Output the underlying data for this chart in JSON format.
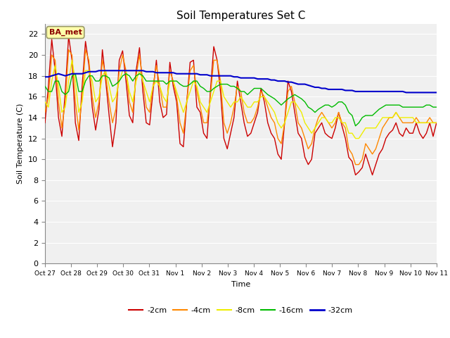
{
  "title": "Soil Temperatures Set C",
  "xlabel": "Time",
  "ylabel": "Soil Temperature (C)",
  "ylim": [
    0,
    23
  ],
  "yticks": [
    0,
    2,
    4,
    6,
    8,
    10,
    12,
    14,
    16,
    18,
    20,
    22
  ],
  "annotation": "BA_met",
  "fig_bg_color": "#ffffff",
  "plot_bg_color": "#f0f0f0",
  "series": {
    "-2cm": {
      "color": "#cc0000",
      "lw": 1.0
    },
    "-4cm": {
      "color": "#ff8800",
      "lw": 1.0
    },
    "-8cm": {
      "color": "#eeee00",
      "lw": 1.0
    },
    "-16cm": {
      "color": "#00bb00",
      "lw": 1.0
    },
    "-32cm": {
      "color": "#0000cc",
      "lw": 1.5
    }
  },
  "x_tick_labels": [
    "Oct 27",
    "Oct 28",
    "Oct 29",
    "Oct 30",
    "Oct 31",
    "Nov 1",
    "Nov 2",
    "Nov 3",
    "Nov 4",
    "Nov 5",
    "Nov 6",
    "Nov 7",
    "Nov 8",
    "Nov 9",
    "Nov 10",
    "Nov 11"
  ],
  "x_tick_positions": [
    0,
    1,
    2,
    3,
    4,
    5,
    6,
    7,
    8,
    9,
    10,
    11,
    12,
    13,
    14,
    15
  ],
  "data_2cm": [
    13.5,
    17.0,
    21.5,
    18.5,
    14.0,
    12.2,
    16.5,
    21.8,
    19.5,
    13.5,
    11.8,
    17.0,
    21.3,
    19.0,
    15.0,
    12.8,
    14.8,
    20.5,
    17.5,
    14.2,
    11.2,
    13.5,
    19.5,
    20.4,
    17.5,
    14.2,
    13.5,
    18.5,
    20.7,
    16.5,
    13.5,
    13.3,
    16.5,
    19.5,
    15.5,
    14.0,
    14.3,
    19.3,
    17.0,
    15.5,
    11.5,
    11.2,
    15.5,
    19.3,
    19.5,
    15.0,
    14.5,
    12.5,
    12.0,
    16.5,
    20.8,
    19.5,
    16.5,
    12.0,
    11.0,
    12.5,
    14.0,
    17.5,
    15.5,
    13.5,
    12.2,
    12.5,
    13.5,
    14.5,
    16.8,
    15.5,
    13.5,
    12.5,
    12.0,
    10.5,
    10.0,
    13.5,
    17.5,
    16.5,
    14.5,
    12.5,
    12.0,
    10.2,
    9.5,
    10.0,
    12.5,
    13.0,
    13.5,
    12.5,
    12.2,
    12.0,
    13.0,
    14.5,
    13.2,
    12.0,
    10.2,
    9.8,
    8.5,
    8.8,
    9.2,
    10.5,
    9.5,
    8.5,
    9.5,
    10.5,
    11.0,
    12.0,
    12.5,
    12.8,
    13.5,
    12.5,
    12.2,
    13.0,
    12.5,
    12.5,
    13.5,
    12.5,
    12.0,
    12.5,
    13.5,
    12.2,
    13.5
  ],
  "data_4cm": [
    14.5,
    16.0,
    20.0,
    19.5,
    15.5,
    13.0,
    15.5,
    20.5,
    20.0,
    15.5,
    12.8,
    16.0,
    20.5,
    19.5,
    16.0,
    14.0,
    15.5,
    19.5,
    18.0,
    15.5,
    13.5,
    14.8,
    18.5,
    20.0,
    18.5,
    15.5,
    14.5,
    18.0,
    20.0,
    17.5,
    15.0,
    14.5,
    17.0,
    19.0,
    17.0,
    15.0,
    15.0,
    18.5,
    17.5,
    16.0,
    13.5,
    12.5,
    15.5,
    18.5,
    19.0,
    16.5,
    15.0,
    13.5,
    13.5,
    16.0,
    19.5,
    19.5,
    17.5,
    13.5,
    12.5,
    13.5,
    15.0,
    17.0,
    16.5,
    14.5,
    13.5,
    13.5,
    14.0,
    15.0,
    16.5,
    16.0,
    15.0,
    14.0,
    13.5,
    12.0,
    11.5,
    13.5,
    16.5,
    17.0,
    15.5,
    13.5,
    13.0,
    12.0,
    11.0,
    11.5,
    13.0,
    14.0,
    14.5,
    14.0,
    13.5,
    13.0,
    13.5,
    14.5,
    13.5,
    13.0,
    11.0,
    10.5,
    9.5,
    9.5,
    10.0,
    11.5,
    11.0,
    10.5,
    11.0,
    12.0,
    13.0,
    13.5,
    14.0,
    14.0,
    14.5,
    14.0,
    13.5,
    13.5,
    13.5,
    13.5,
    14.0,
    13.5,
    13.5,
    13.5,
    14.0,
    13.5,
    13.5
  ],
  "data_8cm": [
    15.5,
    15.0,
    17.5,
    19.0,
    17.0,
    14.5,
    15.0,
    17.5,
    19.5,
    17.5,
    14.5,
    15.5,
    18.5,
    18.5,
    17.5,
    15.5,
    16.0,
    18.0,
    18.5,
    17.0,
    15.5,
    16.0,
    17.5,
    18.5,
    18.5,
    16.5,
    15.5,
    17.5,
    18.5,
    17.5,
    16.5,
    15.5,
    17.0,
    17.5,
    17.0,
    16.0,
    15.5,
    17.5,
    17.5,
    16.5,
    15.5,
    14.5,
    15.5,
    16.5,
    17.5,
    17.0,
    15.5,
    15.0,
    14.5,
    15.5,
    16.5,
    17.5,
    17.5,
    16.0,
    15.5,
    15.0,
    15.5,
    15.5,
    16.0,
    15.5,
    15.0,
    15.0,
    15.5,
    15.5,
    16.0,
    16.0,
    15.5,
    15.0,
    14.5,
    13.5,
    13.0,
    13.5,
    14.5,
    15.5,
    15.5,
    15.0,
    14.5,
    13.5,
    13.0,
    12.5,
    13.0,
    13.5,
    14.0,
    14.0,
    13.5,
    13.5,
    14.0,
    14.0,
    13.5,
    13.5,
    12.5,
    12.5,
    12.0,
    12.0,
    12.5,
    13.0,
    13.0,
    13.0,
    13.0,
    13.5,
    14.0,
    14.0,
    14.0,
    14.0,
    14.5,
    14.0,
    14.0,
    14.0,
    14.0,
    14.0,
    13.5,
    13.5,
    13.5,
    13.5,
    13.5,
    13.5,
    13.5
  ],
  "data_16cm": [
    17.0,
    16.5,
    16.5,
    17.5,
    17.5,
    16.5,
    16.2,
    16.5,
    18.0,
    18.2,
    16.5,
    16.5,
    17.5,
    18.0,
    18.0,
    17.5,
    17.5,
    18.0,
    18.0,
    17.8,
    17.0,
    17.2,
    17.5,
    18.0,
    18.2,
    18.0,
    17.5,
    18.0,
    18.2,
    18.0,
    17.5,
    17.5,
    17.5,
    17.5,
    17.5,
    17.5,
    17.2,
    17.5,
    17.5,
    17.5,
    17.2,
    17.0,
    17.0,
    17.2,
    17.5,
    17.5,
    17.0,
    16.8,
    16.5,
    16.5,
    16.8,
    17.0,
    17.2,
    17.2,
    17.2,
    17.0,
    17.0,
    16.8,
    16.5,
    16.5,
    16.2,
    16.5,
    16.8,
    16.8,
    16.8,
    16.5,
    16.2,
    16.0,
    15.8,
    15.5,
    15.2,
    15.5,
    15.8,
    16.0,
    16.2,
    16.0,
    15.8,
    15.5,
    15.0,
    14.8,
    14.5,
    14.8,
    15.0,
    15.2,
    15.2,
    15.0,
    15.2,
    15.5,
    15.5,
    15.2,
    14.5,
    14.2,
    13.2,
    13.5,
    14.0,
    14.2,
    14.2,
    14.2,
    14.5,
    14.8,
    15.0,
    15.2,
    15.2,
    15.2,
    15.2,
    15.2,
    15.0,
    15.0,
    15.0,
    15.0,
    15.0,
    15.0,
    15.0,
    15.2,
    15.2,
    15.0,
    15.0
  ],
  "data_32cm": [
    17.9,
    17.9,
    18.0,
    18.1,
    18.2,
    18.1,
    18.0,
    18.1,
    18.2,
    18.2,
    18.2,
    18.2,
    18.3,
    18.4,
    18.4,
    18.4,
    18.5,
    18.5,
    18.5,
    18.5,
    18.5,
    18.5,
    18.5,
    18.5,
    18.5,
    18.5,
    18.5,
    18.5,
    18.5,
    18.5,
    18.4,
    18.4,
    18.4,
    18.3,
    18.3,
    18.3,
    18.3,
    18.3,
    18.3,
    18.2,
    18.2,
    18.2,
    18.2,
    18.2,
    18.2,
    18.2,
    18.1,
    18.1,
    18.1,
    18.0,
    18.0,
    18.0,
    18.0,
    18.0,
    18.0,
    18.0,
    17.9,
    17.9,
    17.8,
    17.8,
    17.8,
    17.8,
    17.8,
    17.7,
    17.7,
    17.7,
    17.7,
    17.6,
    17.6,
    17.5,
    17.5,
    17.5,
    17.4,
    17.4,
    17.3,
    17.2,
    17.2,
    17.2,
    17.1,
    17.0,
    16.9,
    16.9,
    16.8,
    16.8,
    16.7,
    16.7,
    16.7,
    16.7,
    16.7,
    16.6,
    16.6,
    16.6,
    16.5,
    16.5,
    16.5,
    16.5,
    16.5,
    16.5,
    16.5,
    16.5,
    16.5,
    16.5,
    16.5,
    16.5,
    16.5,
    16.5,
    16.5,
    16.4,
    16.4,
    16.4,
    16.4,
    16.4,
    16.4,
    16.4,
    16.4,
    16.4,
    16.4
  ]
}
